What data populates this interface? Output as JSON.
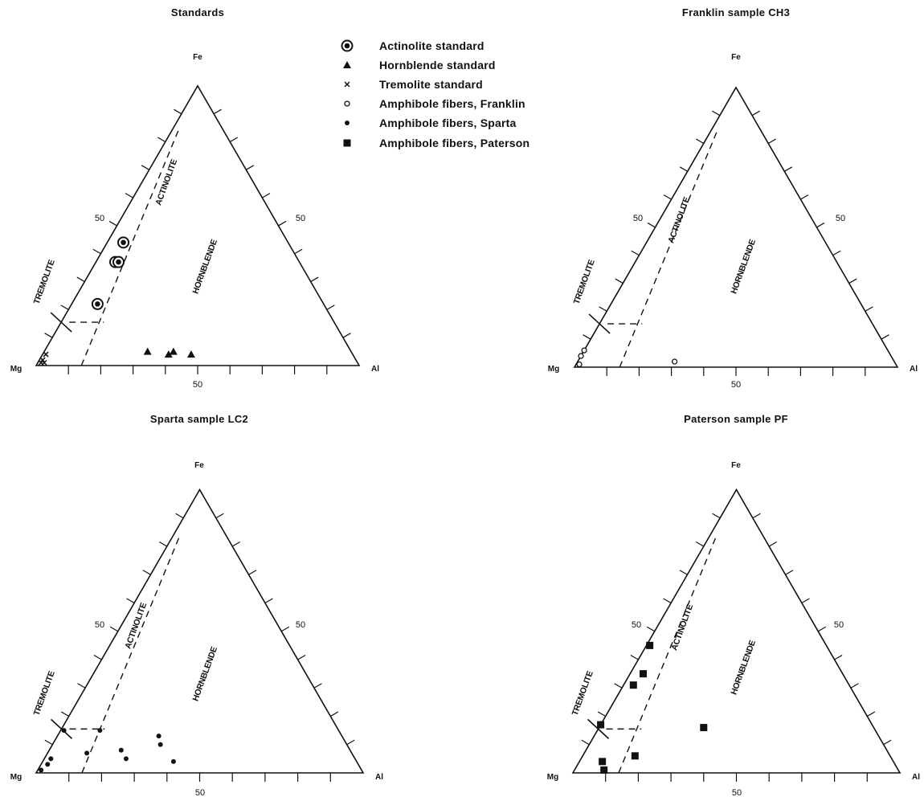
{
  "legend": {
    "items": [
      {
        "symbol": "actinolite-std",
        "label": "Actinolite standard"
      },
      {
        "symbol": "hornblende-std",
        "label": "Hornblende standard"
      },
      {
        "symbol": "tremolite-std",
        "label": "Tremolite standard"
      },
      {
        "symbol": "franklin",
        "label": "Amphibole fibers, Franklin"
      },
      {
        "symbol": "sparta",
        "label": "Amphibole fibers, Sparta"
      },
      {
        "symbol": "paterson",
        "label": "Amphibole fibers, Paterson"
      }
    ]
  },
  "chart_data": [
    {
      "type": "scatter",
      "subtype": "ternary",
      "title": "Standards",
      "vertices": {
        "bottom_left": "Mg",
        "top": "Fe",
        "bottom_right": "Al"
      },
      "axis_tick_label": "50",
      "fields": [
        "TREMOLITE",
        "ACTINOLITE",
        "HORNBLENDE"
      ],
      "series": [
        {
          "symbol": "actinolite-std",
          "points": [
            {
              "Fe": 44,
              "Al": 5
            },
            {
              "Fe": 37,
              "Al": 6
            },
            {
              "Fe": 37,
              "Al": 7
            },
            {
              "Fe": 22,
              "Al": 8
            }
          ]
        },
        {
          "symbol": "hornblende-std",
          "points": [
            {
              "Fe": 5,
              "Al": 32
            },
            {
              "Fe": 4,
              "Al": 39
            },
            {
              "Fe": 5,
              "Al": 40
            },
            {
              "Fe": 4,
              "Al": 46
            }
          ]
        },
        {
          "symbol": "tremolite-std",
          "points": [
            {
              "Fe": 1,
              "Al": 1
            },
            {
              "Fe": 2,
              "Al": 1
            },
            {
              "Fe": 4,
              "Al": 1
            },
            {
              "Fe": 1,
              "Al": 2
            }
          ]
        }
      ]
    },
    {
      "type": "scatter",
      "subtype": "ternary",
      "title": "Franklin sample CH3",
      "vertices": {
        "bottom_left": "Mg",
        "top": "Fe",
        "bottom_right": "Al"
      },
      "axis_tick_label": "50",
      "fields": [
        "TREMOLITE",
        "ACTINOLITE",
        "HORNBLENDE"
      ],
      "series": [
        {
          "symbol": "franklin",
          "points": [
            {
              "Fe": 1,
              "Al": 1
            },
            {
              "Fe": 4,
              "Al": 0
            },
            {
              "Fe": 6,
              "Al": 0
            },
            {
              "Fe": 2,
              "Al": 30
            }
          ]
        }
      ]
    },
    {
      "type": "scatter",
      "subtype": "ternary",
      "title": "Sparta sample LC2",
      "vertices": {
        "bottom_left": "Mg",
        "top": "Fe",
        "bottom_right": "Al"
      },
      "axis_tick_label": "50",
      "fields": [
        "TREMOLITE",
        "ACTINOLITE",
        "HORNBLENDE"
      ],
      "series": [
        {
          "symbol": "sparta",
          "points": [
            {
              "Fe": 1,
              "Al": 1
            },
            {
              "Fe": 3,
              "Al": 2
            },
            {
              "Fe": 5,
              "Al": 2
            },
            {
              "Fe": 15,
              "Al": 1
            },
            {
              "Fe": 15,
              "Al": 12
            },
            {
              "Fe": 7,
              "Al": 12
            },
            {
              "Fe": 8,
              "Al": 22
            },
            {
              "Fe": 5,
              "Al": 25
            },
            {
              "Fe": 13,
              "Al": 31
            },
            {
              "Fe": 10,
              "Al": 33
            },
            {
              "Fe": 4,
              "Al": 40
            }
          ]
        }
      ]
    },
    {
      "type": "scatter",
      "subtype": "ternary",
      "title": "Paterson sample PF",
      "vertices": {
        "bottom_left": "Mg",
        "top": "Fe",
        "bottom_right": "Al"
      },
      "axis_tick_label": "50",
      "fields": [
        "TREMOLITE",
        "ACTINOLITE",
        "HORNBLENDE"
      ],
      "series": [
        {
          "symbol": "paterson",
          "points": [
            {
              "Fe": 17,
              "Al": 0
            },
            {
              "Fe": 4,
              "Al": 7
            },
            {
              "Fe": 1,
              "Al": 9
            },
            {
              "Fe": 6,
              "Al": 16
            },
            {
              "Fe": 45,
              "Al": 1
            },
            {
              "Fe": 35,
              "Al": 4
            },
            {
              "Fe": 31,
              "Al": 3
            },
            {
              "Fe": 16,
              "Al": 32
            }
          ]
        }
      ]
    }
  ]
}
